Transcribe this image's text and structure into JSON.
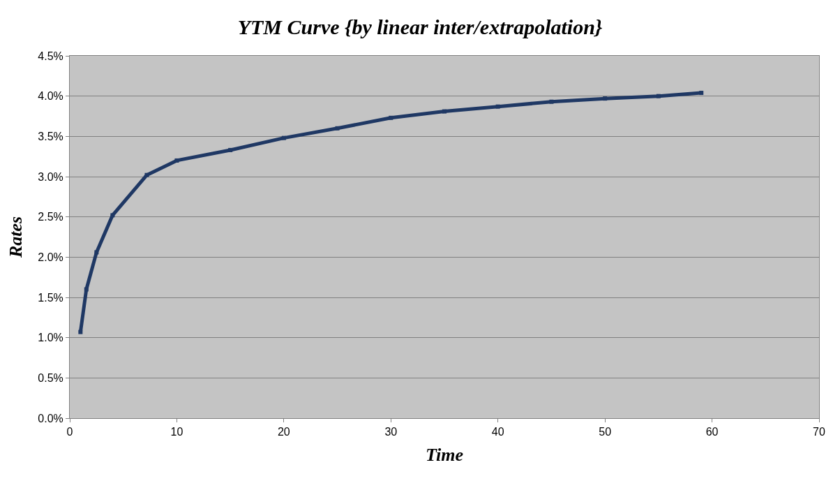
{
  "chart_data": {
    "type": "line",
    "title": "YTM Curve {by linear inter/extrapolation}",
    "xlabel": "Time",
    "ylabel": "Rates",
    "x": [
      1,
      1.55,
      2.5,
      4,
      7.2,
      10,
      15,
      20,
      25,
      30,
      35,
      40,
      45,
      50,
      55,
      59
    ],
    "series": [
      {
        "color": "#1f3864",
        "values": [
          1.07,
          1.6,
          2.06,
          2.52,
          3.02,
          3.2,
          3.33,
          3.48,
          3.6,
          3.73,
          3.81,
          3.87,
          3.93,
          3.97,
          4.0,
          4.04
        ]
      }
    ],
    "xlim": [
      0,
      70
    ],
    "xticks": [
      0,
      10,
      20,
      30,
      40,
      50,
      60,
      70
    ],
    "ylim": [
      0,
      4.5
    ],
    "yticks": [
      {
        "value": 0,
        "label": "0.0%"
      },
      {
        "value": 0.5,
        "label": "0.5%"
      },
      {
        "value": 1,
        "label": "1.0%"
      },
      {
        "value": 1.5,
        "label": "1.5%"
      },
      {
        "value": 2,
        "label": "2.0%"
      },
      {
        "value": 2.5,
        "label": "2.5%"
      },
      {
        "value": 3,
        "label": "3.0%"
      },
      {
        "value": 3.5,
        "label": "3.5%"
      },
      {
        "value": 4,
        "label": "4.0%"
      },
      {
        "value": 4.5,
        "label": "4.5%"
      }
    ],
    "grid": "y",
    "marker": "square",
    "line_style": "solid"
  }
}
